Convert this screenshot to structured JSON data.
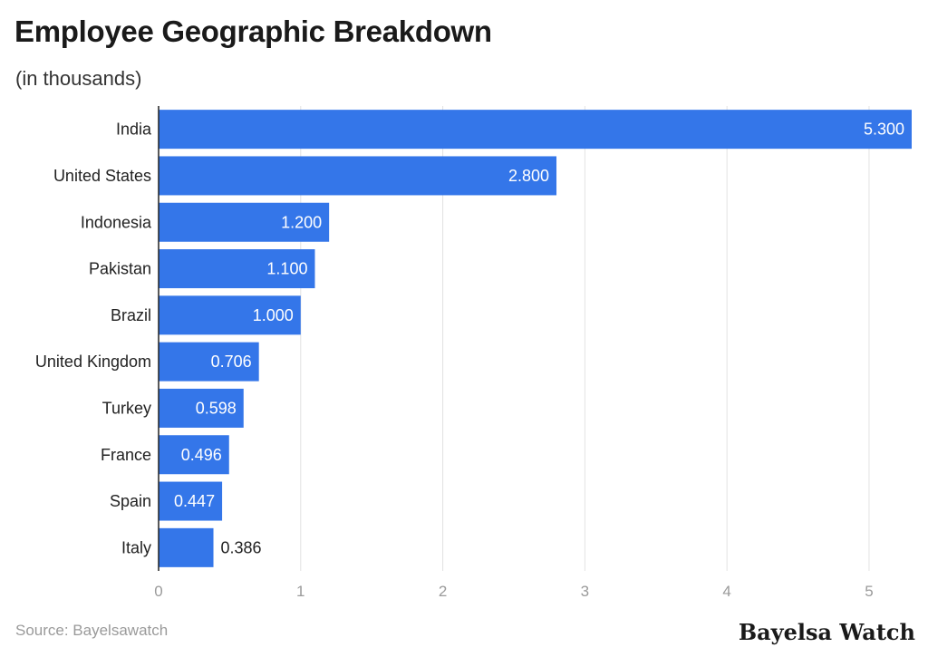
{
  "header": {
    "title": "Employee Geographic Breakdown",
    "subtitle": "(in thousands)"
  },
  "footer": {
    "source": "Source: Bayelsawatch",
    "brand": "Bayelsa Watch"
  },
  "colors": {
    "bar": "#3476e9",
    "grid": "#e2e2e2",
    "axis": "#222222",
    "tick_label": "#9a9a9a",
    "label_inside": "#ffffff",
    "label_outside": "#222222"
  },
  "chart_data": {
    "type": "bar",
    "orientation": "horizontal",
    "title": "Employee Geographic Breakdown",
    "subtitle": "(in thousands)",
    "categories": [
      "India",
      "United States",
      "Indonesia",
      "Pakistan",
      "Brazil",
      "United Kingdom",
      "Turkey",
      "France",
      "Spain",
      "Italy"
    ],
    "values": [
      5.3,
      2.8,
      1.2,
      1.1,
      1.0,
      0.706,
      0.598,
      0.496,
      0.447,
      0.386
    ],
    "value_labels": [
      "5.300",
      "2.800",
      "1.200",
      "1.100",
      "1.000",
      "0.706",
      "0.598",
      "0.496",
      "0.447",
      "0.386"
    ],
    "xlim": [
      0,
      5.3
    ],
    "xticks": [
      0,
      1,
      2,
      3,
      4,
      5
    ],
    "xtick_labels": [
      "0",
      "1",
      "2",
      "3",
      "4",
      "5"
    ],
    "grid": true,
    "legend": false
  }
}
